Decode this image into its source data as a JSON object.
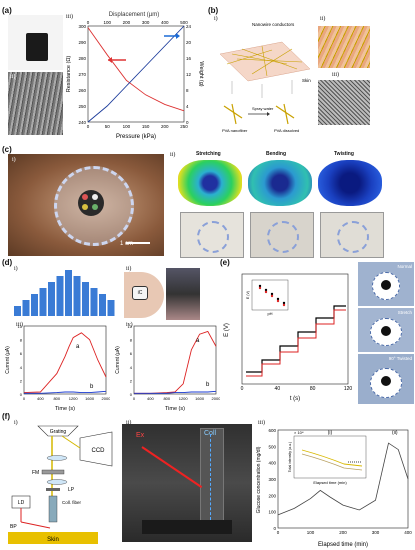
{
  "panels": {
    "a": {
      "label": "(a)",
      "sub": [
        "i)",
        "ii)",
        "iii)"
      ],
      "chart": {
        "top_axis_label": "Displacement (µm)",
        "top_ticks": [
          "0",
          "100",
          "200",
          "300",
          "400",
          "500"
        ],
        "xlabel": "Pressure (kPa)",
        "x_ticks": [
          "0",
          "50",
          "100",
          "150",
          "200",
          "250"
        ],
        "ylabel_left": "Resistance (Ω)",
        "y_left_ticks": [
          "240",
          "250",
          "260",
          "270",
          "280",
          "290",
          "300"
        ],
        "ylabel_right": "Weight (g)",
        "y_right_ticks": [
          "0",
          "4",
          "8",
          "12",
          "16",
          "20",
          "24"
        ]
      }
    },
    "b": {
      "label": "(b)",
      "sub": [
        "i)",
        "ii)",
        "iii)"
      ],
      "annotations": [
        "Nanowire conductors",
        "Skin",
        "Spray water",
        "PVA nanofiber",
        "PVA dissolved"
      ]
    },
    "c": {
      "label": "(c)",
      "sub": [
        "i)",
        "ii)"
      ],
      "scale": "1 cm",
      "modes": [
        "Stretching",
        "Bending",
        "Twisting"
      ],
      "small_scale": "1 cm"
    },
    "d": {
      "label": "(d)",
      "sub": [
        "i)",
        "ii)",
        "iii)",
        "iv)"
      ],
      "tag": "iC",
      "plot_iii": {
        "ylabel": "Current (µA)",
        "xlabel": "Time (s)",
        "x_ticks": [
          "0",
          "400",
          "800",
          "1200",
          "1600",
          "2000"
        ],
        "y_ticks": [
          "0",
          "2",
          "4",
          "6",
          "8",
          "10"
        ],
        "curve_labels": [
          "a",
          "b"
        ]
      },
      "plot_iv": {
        "ylabel": "Current (µA)",
        "xlabel": "Time (s)",
        "x_ticks": [
          "0",
          "400",
          "800",
          "1200",
          "1600",
          "2000"
        ],
        "y_ticks": [
          "0",
          "2",
          "4",
          "6",
          "8",
          "10"
        ],
        "curve_labels": [
          "a",
          "b"
        ]
      }
    },
    "e": {
      "label": "(e)",
      "ylabel": "E (V)",
      "xlabel": "t (s)",
      "x_ticks": [
        "0",
        "40",
        "80",
        "120"
      ],
      "inset_xlabel": "pH",
      "inset_ylabel": "E (V)",
      "side_labels": [
        "Normal",
        "Stretch",
        "90° Twisted"
      ]
    },
    "f": {
      "label": "(f)",
      "sub": [
        "i)",
        "ii)",
        "iii)"
      ],
      "diagram": [
        "Grating",
        "CCD",
        "FM",
        "LP",
        "Coll. fiber",
        "LD",
        "BP",
        "Skin"
      ],
      "photo": [
        "Ex",
        "Coll"
      ],
      "chart": {
        "ylabel": "Glucose concentration (mg/dl)",
        "xlabel": "Elapsed time (min)",
        "x_ticks": [
          "0",
          "100",
          "200",
          "300",
          "400"
        ],
        "y_ticks": [
          "0",
          "100",
          "200",
          "300",
          "400",
          "500",
          "600"
        ],
        "inset_label": "(i)",
        "inset_ylabel": "Total intensity (a.u.)",
        "inset_xlabel": "Elapsed time (min)",
        "inset_exp": "× 10⁴",
        "right_label": "(ii)"
      }
    }
  },
  "chart_data": [
    {
      "type": "line",
      "id": "a-iii",
      "series": [
        {
          "name": "",
          "x": [
            0,
            50,
            100,
            150,
            200,
            250
          ],
          "values": [
            299,
            282,
            266,
            257,
            251,
            247
          ]
        },
        {
          "name": "",
          "x": [
            0,
            50,
            100,
            150,
            200,
            250
          ],
          "values": [
            0,
            4,
            9,
            14,
            19,
            24
          ]
        }
      ]
    },
    {
      "type": "line",
      "id": "d-iii",
      "x": [
        0,
        400,
        800,
        1000,
        1100,
        1200,
        1400,
        1600,
        1800,
        2000
      ],
      "series": [
        {
          "name": "a",
          "values": [
            0.2,
            0.3,
            3.0,
            5.5,
            7.0,
            8.3,
            9.0,
            8.0,
            5.0,
            2.5
          ]
        },
        {
          "name": "b",
          "values": [
            0.1,
            0.1,
            0.2,
            0.3,
            0.3,
            0.3,
            0.2,
            0.2,
            0.3,
            0.4
          ]
        }
      ]
    },
    {
      "type": "line",
      "id": "d-iv",
      "x": [
        0,
        400,
        800,
        1000,
        1200,
        1400,
        1600,
        1800,
        2000
      ],
      "series": [
        {
          "name": "a",
          "values": [
            0.1,
            0.1,
            0.2,
            0.3,
            1.5,
            6.5,
            8.8,
            9.2,
            7.0
          ]
        },
        {
          "name": "b",
          "values": [
            0.1,
            0.1,
            0.1,
            0.2,
            0.2,
            0.3,
            0.3,
            0.3,
            0.4
          ]
        }
      ]
    },
    {
      "type": "line",
      "id": "f-iii",
      "x": [
        0,
        50,
        100,
        130,
        160,
        200,
        250,
        300,
        340,
        370,
        400
      ],
      "series": [
        {
          "name": "",
          "values": [
            80,
            120,
            180,
            230,
            190,
            140,
            110,
            170,
            520,
            480,
            300
          ]
        }
      ]
    }
  ]
}
